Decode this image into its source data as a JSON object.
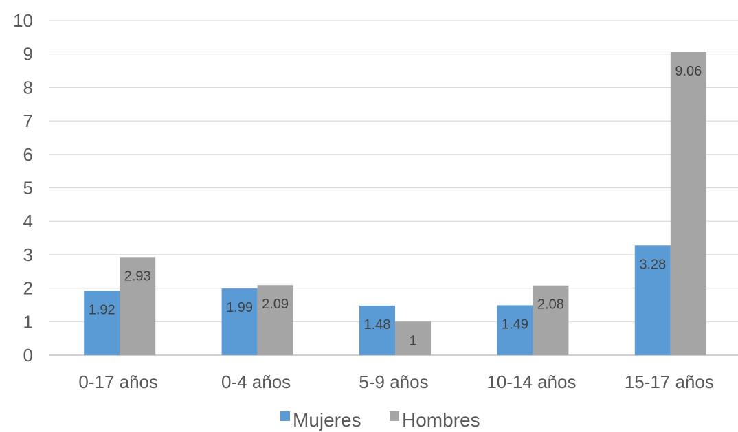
{
  "chart_data": {
    "type": "bar",
    "title": "",
    "xlabel": "",
    "ylabel": "",
    "categories": [
      "0-17 años",
      "0-4 años",
      "5-9 años",
      "10-14 años",
      "15-17 años"
    ],
    "series": [
      {
        "name": "Mujeres",
        "values": [
          1.92,
          1.99,
          1.48,
          1.49,
          3.28
        ],
        "labels": [
          "1.92",
          "1.99",
          "1.48",
          "1.49",
          "3.28"
        ],
        "color": "#5B9BD5"
      },
      {
        "name": "Hombres",
        "values": [
          2.93,
          2.09,
          1,
          2.08,
          9.06
        ],
        "labels": [
          "2.93",
          "2.09",
          "1",
          "2.08",
          "9.06"
        ],
        "color": "#A5A5A5"
      }
    ],
    "yticks": [
      "0",
      "1",
      "2",
      "3",
      "4",
      "5",
      "6",
      "7",
      "8",
      "9",
      "10"
    ],
    "ylim": [
      0,
      10
    ],
    "grid": true,
    "legend_position": "bottom"
  }
}
